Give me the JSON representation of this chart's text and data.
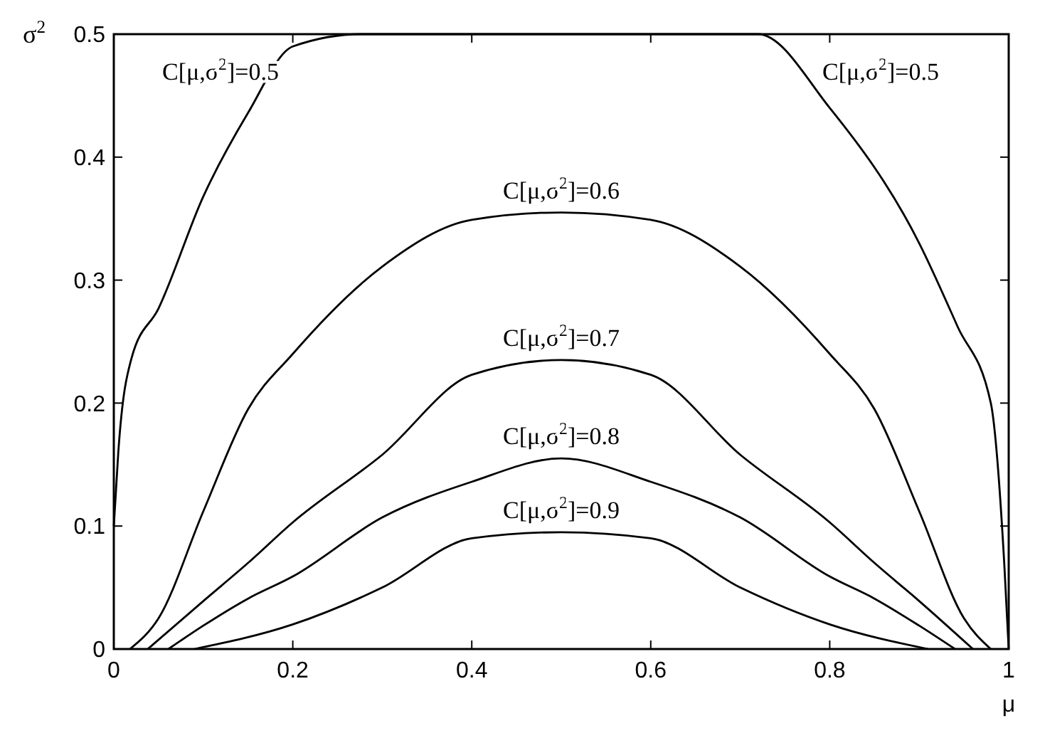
{
  "chart_data": {
    "type": "line",
    "xlabel": "μ",
    "ylabel": "σ$^{2}$",
    "xlim": [
      0,
      1
    ],
    "ylim": [
      0,
      0.5
    ],
    "xticks": [
      0,
      0.2,
      0.4,
      0.6,
      0.8,
      1
    ],
    "yticks": [
      0,
      0.1,
      0.2,
      0.3,
      0.4,
      0.5
    ],
    "grid": false,
    "marker": "none",
    "line_style": "solid",
    "series": [
      {
        "name": "C[μ,σ$^{2}$]=0.5",
        "color": "#000000",
        "x": [
          0,
          0.005,
          0.02,
          0.05,
          0.1,
          0.15,
          0.2,
          0.277,
          0.72,
          0.8,
          0.9,
          0.943,
          0.98,
          0.995,
          1.0
        ],
        "values": [
          0.1,
          0.16,
          0.237,
          0.277,
          0.368,
          0.436,
          0.49,
          0.5,
          0.5,
          0.44,
          0.33,
          0.262,
          0.2,
          0.07,
          0.0
        ]
      },
      {
        "name": "C[μ,σ$^{2}$]=0.6",
        "color": "#000000",
        "x": [
          0.018,
          0.05,
          0.1,
          0.15,
          0.2,
          0.3,
          0.4,
          0.5,
          0.6,
          0.7,
          0.8,
          0.85,
          0.9,
          0.95,
          0.98
        ],
        "values": [
          0,
          0.025,
          0.112,
          0.195,
          0.24,
          0.311,
          0.349,
          0.355,
          0.349,
          0.311,
          0.24,
          0.195,
          0.112,
          0.025,
          0
        ]
      },
      {
        "name": "C[μ,σ$^{2}$]=0.7",
        "color": "#000000",
        "x": [
          0.038,
          0.1,
          0.15,
          0.2,
          0.3,
          0.4,
          0.5,
          0.6,
          0.7,
          0.8,
          0.85,
          0.9,
          0.96
        ],
        "values": [
          0,
          0.039,
          0.07,
          0.103,
          0.158,
          0.223,
          0.235,
          0.223,
          0.158,
          0.103,
          0.07,
          0.039,
          0
        ]
      },
      {
        "name": "C[μ,σ$^{2}$]=0.8",
        "color": "#000000",
        "x": [
          0.061,
          0.1,
          0.15,
          0.2,
          0.3,
          0.4,
          0.5,
          0.6,
          0.7,
          0.8,
          0.85,
          0.9,
          0.94
        ],
        "values": [
          0,
          0.019,
          0.041,
          0.059,
          0.107,
          0.136,
          0.155,
          0.136,
          0.107,
          0.059,
          0.041,
          0.019,
          0
        ]
      },
      {
        "name": "C[μ,σ$^{2}$]=0.9",
        "color": "#000000",
        "x": [
          0.09,
          0.2,
          0.3,
          0.4,
          0.5,
          0.6,
          0.7,
          0.8,
          0.91
        ],
        "values": [
          0,
          0.02,
          0.05,
          0.09,
          0.095,
          0.09,
          0.05,
          0.02,
          0
        ]
      }
    ]
  }
}
